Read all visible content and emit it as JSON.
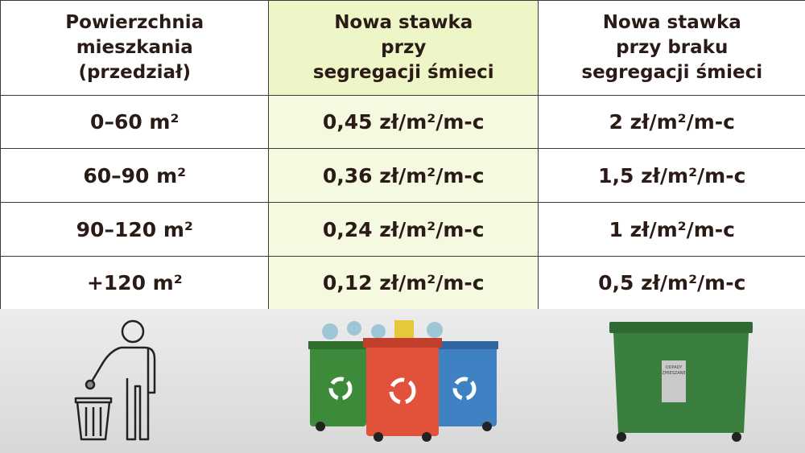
{
  "table": {
    "header": [
      [
        "Powierzchnia",
        "mieszkania",
        "(przedział)"
      ],
      [
        "Nowa stawka",
        "przy",
        "segregacji śmieci"
      ],
      [
        "Nowa stawka",
        "przy braku",
        "segregacji śmieci"
      ]
    ],
    "rows": [
      [
        "0–60 m²",
        "0,45 zł/m²/m-c",
        "2 zł/m²/m-c"
      ],
      [
        "60–90 m²",
        "0,36 zł/m²/m-c",
        "1,5 zł/m²/m-c"
      ],
      [
        "90–120 m²",
        "0,24 zł/m²/m-c",
        "1 zł/m²/m-c"
      ],
      [
        "+120 m²",
        "0,12 zł/m²/m-c",
        "0,5 zł/m²/m-c"
      ]
    ]
  },
  "illustration": {
    "container_label": [
      "ODPADY",
      "ZMIESZANE"
    ]
  }
}
